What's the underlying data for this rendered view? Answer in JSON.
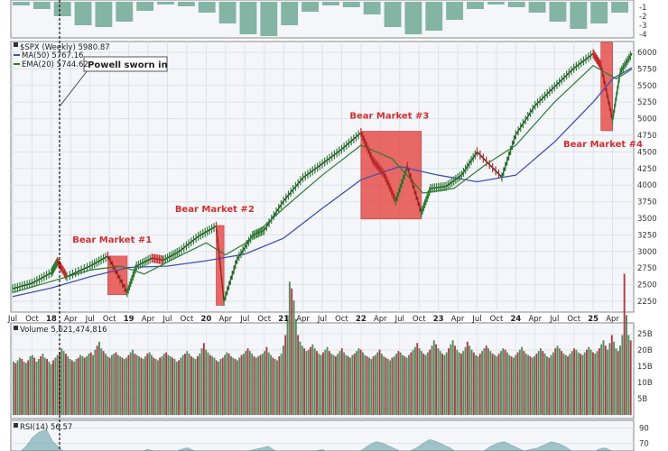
{
  "chart_data": {
    "type": "line",
    "symbol": "$SPX (Weekly)",
    "last_value": "5980.87",
    "ma50_label": "MA(50)",
    "ma50_value": "5767.16",
    "ema20_label": "EMA(20)",
    "ema20_value": "5744.62",
    "volume_label": "Volume",
    "volume_value": "5,621,474,816",
    "rsi_label": "RSI(14)",
    "rsi_value": "56.57",
    "powell_note": "Powell sworn in",
    "price_ticks": [
      "6000",
      "5750",
      "5500",
      "5250",
      "5000",
      "4750",
      "4500",
      "4250",
      "4000",
      "3750",
      "3500",
      "3250",
      "3000",
      "2750",
      "2500",
      "2250"
    ],
    "volume_ticks": [
      "25B",
      "20B",
      "15B",
      "10B",
      "5B"
    ],
    "rsi_ticks": [
      "90",
      "70"
    ],
    "macd_ticks": [
      "-1",
      "-2",
      "-3",
      "-4"
    ],
    "x_ticks": [
      "Jul",
      "Oct",
      "18",
      "Apr",
      "Jul",
      "Oct",
      "19",
      "Apr",
      "Jul",
      "Oct",
      "20",
      "Apr",
      "Jul",
      "Oct",
      "21",
      "Apr",
      "Jul",
      "Oct",
      "22",
      "Apr",
      "Jul",
      "Oct",
      "23",
      "Apr",
      "Jul",
      "Oct",
      "24",
      "Apr",
      "Jul",
      "Oct",
      "25",
      "Apr"
    ],
    "bear_markets": [
      {
        "label": "Bear Market #1",
        "start": 2018.73,
        "end": 2018.98,
        "high": 2930,
        "low": 2350
      },
      {
        "label": "Bear Market #2",
        "start": 2020.13,
        "end": 2020.23,
        "high": 3390,
        "low": 2190
      },
      {
        "label": "Bear Market #3",
        "start": 2022.0,
        "end": 2022.78,
        "high": 4810,
        "low": 3490
      },
      {
        "label": "Bear Market #4",
        "start": 2025.1,
        "end": 2025.25,
        "high": 6150,
        "low": 4820
      }
    ],
    "series": [
      {
        "name": "$SPX",
        "x": [
          2017.5,
          2017.75,
          2018.0,
          2018.08,
          2018.2,
          2018.5,
          2018.73,
          2018.98,
          2019.1,
          2019.3,
          2019.45,
          2019.65,
          2019.9,
          2020.13,
          2020.23,
          2020.4,
          2020.6,
          2020.75,
          2021.0,
          2021.25,
          2021.5,
          2021.75,
          2022.0,
          2022.15,
          2022.3,
          2022.45,
          2022.6,
          2022.78,
          2022.9,
          2023.1,
          2023.3,
          2023.5,
          2023.82,
          2024.0,
          2024.25,
          2024.5,
          2024.75,
          2025.0,
          2025.1,
          2025.25,
          2025.35,
          2025.5
        ],
        "y": [
          2440,
          2520,
          2680,
          2850,
          2620,
          2780,
          2930,
          2380,
          2780,
          2900,
          2870,
          3000,
          3230,
          3380,
          2250,
          2880,
          3240,
          3320,
          3760,
          4110,
          4320,
          4540,
          4790,
          4380,
          4160,
          3760,
          4280,
          3580,
          3950,
          3980,
          4150,
          4500,
          4120,
          4760,
          5200,
          5480,
          5760,
          5980,
          5800,
          4980,
          5700,
          5981
        ]
      },
      {
        "name": "MA(50)",
        "x": [
          2017.5,
          2018.0,
          2018.5,
          2019.0,
          2019.5,
          2020.0,
          2020.5,
          2021.0,
          2021.5,
          2022.0,
          2022.5,
          2023.0,
          2023.5,
          2024.0,
          2024.5,
          2025.0,
          2025.25,
          2025.5
        ],
        "y": [
          2320,
          2450,
          2620,
          2760,
          2780,
          2860,
          2960,
          3200,
          3650,
          4080,
          4280,
          4150,
          4050,
          4150,
          4650,
          5250,
          5600,
          5767
        ]
      },
      {
        "name": "EMA(20)",
        "x": [
          2017.5,
          2018.0,
          2018.5,
          2018.9,
          2019.2,
          2019.6,
          2020.0,
          2020.25,
          2020.5,
          2021.0,
          2021.5,
          2022.0,
          2022.4,
          2022.8,
          2023.2,
          2023.6,
          2024.0,
          2024.5,
          2025.0,
          2025.3,
          2025.5
        ],
        "y": [
          2380,
          2550,
          2720,
          2780,
          2660,
          2900,
          3130,
          2950,
          3120,
          3650,
          4150,
          4600,
          4400,
          3880,
          3950,
          4300,
          4600,
          5250,
          5800,
          5600,
          5745
        ]
      }
    ],
    "volume": [
      4.0,
      3.9,
      4.1,
      4.3,
      4.2,
      4.0,
      3.9,
      4.1,
      4.4,
      4.5,
      4.3,
      4.0,
      4.2,
      4.4,
      4.6,
      4.3,
      4.2,
      4.0,
      3.8,
      4.1,
      4.3,
      4.5,
      4.7,
      5.0,
      4.8,
      4.6,
      4.4,
      4.2,
      4.1,
      4.0,
      4.2,
      4.3,
      4.5,
      4.4,
      4.3,
      4.4,
      4.6,
      4.7,
      4.5,
      4.9,
      5.2,
      5.5,
      5.0,
      4.8,
      4.6,
      4.4,
      4.3,
      4.5,
      4.6,
      4.7,
      4.5,
      4.4,
      4.3,
      4.2,
      4.3,
      4.5,
      4.7,
      4.9,
      4.6,
      4.5,
      4.4,
      4.3,
      4.2,
      4.4,
      4.6,
      4.7,
      4.5,
      4.3,
      4.2,
      4.1,
      4.3,
      4.4,
      4.6,
      4.7,
      4.5,
      4.4,
      4.3,
      4.2,
      4.0,
      4.1,
      4.3,
      4.5,
      4.6,
      4.8,
      4.6,
      4.4,
      4.3,
      4.2,
      4.4,
      4.6,
      5.0,
      5.4,
      4.9,
      4.7,
      4.5,
      4.4,
      4.3,
      4.1,
      4.0,
      4.2,
      4.3,
      4.5,
      4.7,
      4.6,
      4.4,
      4.3,
      4.2,
      4.1,
      4.3,
      4.5,
      4.6,
      4.8,
      5.0,
      4.8,
      4.6,
      4.4,
      4.3,
      4.4,
      4.5,
      4.6,
      4.8,
      5.1,
      4.7,
      4.5,
      4.3,
      4.2,
      4.1,
      4.4,
      4.6,
      5.2,
      6.0,
      7.5,
      10.0,
      9.5,
      8.6,
      7.2,
      6.0,
      5.5,
      5.2,
      5.0,
      4.8,
      4.9,
      5.1,
      5.3,
      5.0,
      4.8,
      4.6,
      4.5,
      4.7,
      4.9,
      5.1,
      4.8,
      4.6,
      4.5,
      4.4,
      4.6,
      4.8,
      5.0,
      4.7,
      4.5,
      4.4,
      4.3,
      4.5,
      4.6,
      4.8,
      5.0,
      4.9,
      4.7,
      4.5,
      4.4,
      4.3,
      4.2,
      4.4,
      4.5,
      4.7,
      4.9,
      4.6,
      4.4,
      4.3,
      4.2,
      4.1,
      4.3,
      4.4,
      4.6,
      4.8,
      4.7,
      4.5,
      4.4,
      4.3,
      4.5,
      4.7,
      4.9,
      5.1,
      5.4,
      5.0,
      4.8,
      4.6,
      4.5,
      4.7,
      4.9,
      5.2,
      5.6,
      5.3,
      5.0,
      4.8,
      4.6,
      4.5,
      4.7,
      5.0,
      5.3,
      5.6,
      5.2,
      4.9,
      4.7,
      4.6,
      4.8,
      5.1,
      5.5,
      5.2,
      4.9,
      4.7,
      4.5,
      4.4,
      4.6,
      4.8,
      5.0,
      5.2,
      5.0,
      4.8,
      4.6,
      4.5,
      4.4,
      4.6,
      4.8,
      5.0,
      4.9,
      4.7,
      4.5,
      4.4,
      4.3,
      4.5,
      4.7,
      4.9,
      5.1,
      4.8,
      4.6,
      4.5,
      4.4,
      4.3,
      4.4,
      4.6,
      4.8,
      5.0,
      4.8,
      4.6,
      4.4,
      4.3,
      4.5,
      4.7,
      5.0,
      5.2,
      5.0,
      4.8,
      4.6,
      4.5,
      4.4,
      4.6,
      4.8,
      5.0,
      4.9,
      4.7,
      4.6,
      4.5,
      4.7,
      4.9,
      5.1,
      4.9,
      4.7,
      4.6,
      4.8,
      5.0,
      5.3,
      5.6,
      5.2,
      4.9,
      5.4,
      6.0,
      5.5,
      5.0,
      4.8,
      5.2,
      6.0,
      10.6,
      7.5,
      6.0,
      5.6
    ],
    "rsi": [
      60,
      58,
      66,
      78,
      85,
      88,
      72,
      64,
      55,
      50,
      48,
      52,
      58,
      60,
      55,
      45,
      40,
      42,
      52,
      58,
      62,
      60,
      55,
      50,
      58,
      62,
      64,
      60,
      58,
      56,
      48,
      35,
      44,
      52,
      58,
      60,
      62,
      64,
      66,
      60,
      55,
      52,
      50,
      48,
      55,
      60,
      62,
      58,
      48,
      45,
      50,
      56,
      62,
      68,
      72,
      70,
      66,
      62,
      58,
      60,
      64,
      70,
      75,
      72,
      68,
      64,
      58,
      48,
      38,
      50,
      60,
      66,
      70,
      72,
      68,
      64,
      60,
      62,
      64,
      68,
      72,
      70,
      66,
      60,
      52,
      48,
      55,
      62,
      64,
      60,
      58,
      56,
      57
    ],
    "macd": [
      -0.4,
      -0.8,
      -1.6,
      -2.6,
      -2.8,
      -2.2,
      -1.0,
      -0.3,
      -0.5,
      -1.2,
      -2.4,
      -3.6,
      -3.8,
      -2.6,
      -1.1,
      -0.4,
      -0.6,
      -1.4,
      -2.8,
      -3.6,
      -3.2,
      -2.0,
      -0.8,
      -0.3,
      -0.6,
      -1.2,
      -2.2,
      -3.0,
      -2.4,
      -1.2
    ],
    "colors": {
      "price_up": "#2e7d32",
      "price_down": "#c62828",
      "ma50": "#3f51b5",
      "ema20": "#2e7d32",
      "bear_fill": "#e53935",
      "bear_text": "#d32f2f",
      "volume_up": "#5a8a5e",
      "volume_down": "#b23a48",
      "rsi_fill": "#5b9aa0",
      "bg": "#f4f6fa"
    }
  }
}
